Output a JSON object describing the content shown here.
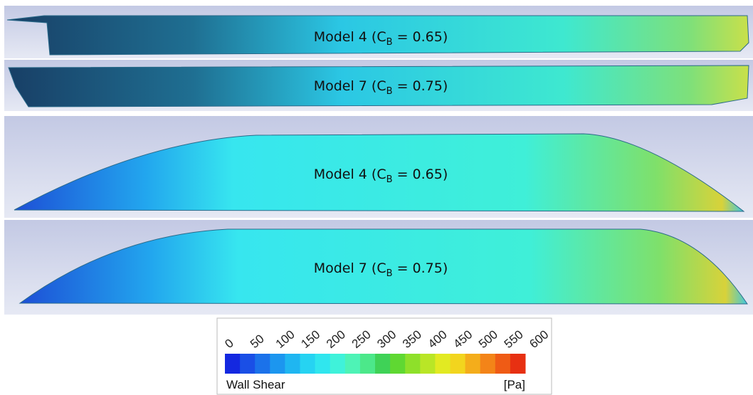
{
  "panels": [
    {
      "label": "Model 4 (C",
      "sub": "B",
      "rest": " = 0.65)"
    },
    {
      "label": "Model 7 (C",
      "sub": "B",
      "rest": " = 0.75)"
    },
    {
      "label": "Model 4 (C",
      "sub": "B",
      "rest": " = 0.65)"
    },
    {
      "label": "Model 7 (C",
      "sub": "B",
      "rest": " = 0.75)"
    }
  ],
  "legend": {
    "title": "Wall Shear",
    "unit": "[Pa]",
    "range": [
      0,
      600
    ],
    "ticks": [
      0,
      50,
      100,
      150,
      200,
      250,
      300,
      350,
      400,
      450,
      500,
      550,
      600
    ],
    "colors": [
      "#1428e0",
      "#1a4fe6",
      "#1b72ea",
      "#1c96ef",
      "#1fb6f1",
      "#26d3f2",
      "#30e6ee",
      "#3ff2da",
      "#4ef3b6",
      "#4ce88a",
      "#3fd257",
      "#5fd832",
      "#8ee02a",
      "#b9e626",
      "#e2ea22",
      "#f2d51e",
      "#f4ad1b",
      "#f38418",
      "#ef5b15",
      "#e73012"
    ]
  }
}
